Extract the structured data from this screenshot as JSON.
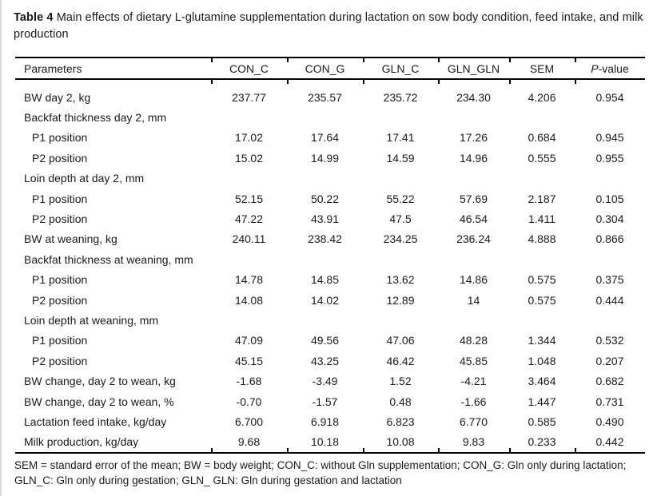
{
  "title": {
    "bold": "Table 4",
    "rest": " Main effects of dietary L-glutamine supplementation during lactation on sow body condition, feed intake, and milk production"
  },
  "table": {
    "columns": [
      "Parameters",
      "CON_C",
      "CON_G",
      "GLN_C",
      "GLN_GLN",
      "SEM",
      "P-value"
    ],
    "rows": [
      {
        "label": "BW day 2, kg",
        "indent": false,
        "values": [
          "237.77",
          "235.57",
          "235.72",
          "234.30",
          "4.206",
          "0.954"
        ]
      },
      {
        "label": "Backfat thickness day 2, mm",
        "indent": false,
        "values": []
      },
      {
        "label": "P1 position",
        "indent": true,
        "values": [
          "17.02",
          "17.64",
          "17.41",
          "17.26",
          "0.684",
          "0.945"
        ]
      },
      {
        "label": "P2 position",
        "indent": true,
        "values": [
          "15.02",
          "14.99",
          "14.59",
          "14.96",
          "0.555",
          "0.955"
        ]
      },
      {
        "label": "Loin depth at day 2, mm",
        "indent": false,
        "values": []
      },
      {
        "label": "P1 position",
        "indent": true,
        "values": [
          "52.15",
          "50.22",
          "55.22",
          "57.69",
          "2.187",
          "0.105"
        ]
      },
      {
        "label": "P2 position",
        "indent": true,
        "values": [
          "47.22",
          "43.91",
          "47.5",
          "46.54",
          "1.411",
          "0.304"
        ]
      },
      {
        "label": "BW at weaning, kg",
        "indent": false,
        "values": [
          "240.11",
          "238.42",
          "234.25",
          "236.24",
          "4.888",
          "0.866"
        ]
      },
      {
        "label": "Backfat thickness at weaning, mm",
        "indent": false,
        "values": []
      },
      {
        "label": "P1 position",
        "indent": true,
        "values": [
          "14.78",
          "14.85",
          "13.62",
          "14.86",
          "0.575",
          "0.375"
        ]
      },
      {
        "label": "P2 position",
        "indent": true,
        "values": [
          "14.08",
          "14.02",
          "12.89",
          "14",
          "0.575",
          "0.444"
        ]
      },
      {
        "label": "Loin depth at weaning, mm",
        "indent": false,
        "values": []
      },
      {
        "label": "P1 position",
        "indent": true,
        "values": [
          "47.09",
          "49.56",
          "47.06",
          "48.28",
          "1.344",
          "0.532"
        ]
      },
      {
        "label": "P2 position",
        "indent": true,
        "values": [
          "45.15",
          "43.25",
          "46.42",
          "45.85",
          "1.048",
          "0.207"
        ]
      },
      {
        "label": "BW change, day 2 to wean, kg",
        "indent": false,
        "values": [
          "-1.68",
          "-3.49",
          "1.52",
          "-4.21",
          "3.464",
          "0.682"
        ]
      },
      {
        "label": "BW change, day 2 to wean, %",
        "indent": false,
        "values": [
          "-0.70",
          "-1.57",
          "0.48",
          "-1.66",
          "1.447",
          "0.731"
        ]
      },
      {
        "label": "Lactation feed intake, kg/day",
        "indent": false,
        "values": [
          "6.700",
          "6.918",
          "6.823",
          "6.770",
          "0.585",
          "0.490"
        ]
      },
      {
        "label": "Milk production, kg/day",
        "indent": false,
        "values": [
          "9.68",
          "10.18",
          "10.08",
          "9.83",
          "0.233",
          "0.442"
        ]
      }
    ]
  },
  "footnote": "SEM = standard error of the mean; BW = body weight; CON_C: without Gln supplementation; CON_G: Gln only during lactation; GLN_C: Gln only during gestation; GLN_ GLN: Gln during gestation and lactation"
}
